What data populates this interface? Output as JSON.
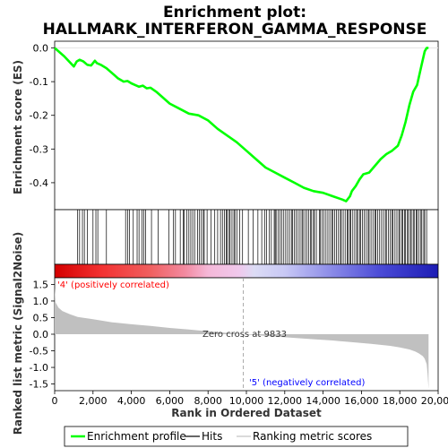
{
  "chart_data": {
    "type": "line",
    "title_line1": "Enrichment plot:",
    "title_line2": "HALLMARK_INTERFERON_GAMMA_RESPONSE",
    "ylabel_top": "Enrichment score (ES)",
    "ylabel_bottom": "Ranked list metric (Signal2Noise)",
    "xlabel": "Rank in Ordered Dataset",
    "xlim": [
      0,
      20000
    ],
    "ylim_es": [
      -0.48,
      0.02
    ],
    "ylim_metric": [
      -1.7,
      1.7
    ],
    "x_ticks": [
      "0",
      "2,000",
      "4,000",
      "6,000",
      "8,000",
      "10,000",
      "12,000",
      "14,000",
      "16,000",
      "18,000",
      "20,000"
    ],
    "es_ticks": [
      "0.0",
      "-0.1",
      "-0.2",
      "-0.3",
      "-0.4"
    ],
    "metric_ticks": [
      "1.5",
      "1.0",
      "0.5",
      "0.0",
      "-0.5",
      "-1.0",
      "-1.5"
    ],
    "label_positive": "'4' (positively correlated)",
    "label_negative": "'5' (negatively correlated)",
    "zero_cross_label": "Zero cross at 9833",
    "zero_cross": 9833,
    "n_genes": 19500,
    "es_curve": {
      "x": [
        0,
        500,
        1000,
        1150,
        1300,
        1500,
        1700,
        1900,
        2100,
        2200,
        2400,
        2700,
        3000,
        3300,
        3600,
        3800,
        4000,
        4200,
        4400,
        4600,
        4800,
        5000,
        5300,
        5600,
        6000,
        6500,
        7000,
        7500,
        8000,
        8500,
        9000,
        9500,
        10000,
        10500,
        11000,
        11500,
        12000,
        12500,
        13000,
        13500,
        14000,
        14500,
        15000,
        15200,
        15400,
        15500,
        15700,
        15900,
        16100,
        16400,
        16700,
        17000,
        17300,
        17600,
        17900,
        18100,
        18300,
        18500,
        18700,
        18900,
        19100,
        19300,
        19400,
        19500
      ],
      "y": [
        0.0,
        -0.025,
        -0.055,
        -0.04,
        -0.035,
        -0.04,
        -0.05,
        -0.052,
        -0.038,
        -0.045,
        -0.05,
        -0.06,
        -0.075,
        -0.09,
        -0.1,
        -0.098,
        -0.105,
        -0.11,
        -0.115,
        -0.112,
        -0.12,
        -0.118,
        -0.13,
        -0.145,
        -0.165,
        -0.18,
        -0.195,
        -0.2,
        -0.215,
        -0.24,
        -0.26,
        -0.28,
        -0.305,
        -0.33,
        -0.355,
        -0.37,
        -0.385,
        -0.4,
        -0.415,
        -0.425,
        -0.43,
        -0.44,
        -0.45,
        -0.455,
        -0.44,
        -0.425,
        -0.41,
        -0.39,
        -0.375,
        -0.37,
        -0.35,
        -0.33,
        -0.315,
        -0.305,
        -0.29,
        -0.26,
        -0.22,
        -0.17,
        -0.13,
        -0.11,
        -0.06,
        -0.01,
        0.0,
        0.0
      ]
    },
    "metric_curve": {
      "x": [
        0,
        50,
        200,
        400,
        800,
        1200,
        2000,
        3000,
        4000,
        5000,
        6000,
        7000,
        8000,
        9000,
        9833,
        10500,
        11500,
        12500,
        13500,
        14500,
        15500,
        16500,
        17500,
        18000,
        18500,
        18800,
        19000,
        19200,
        19300,
        19400,
        19450,
        19500
      ],
      "y": [
        1.4,
        0.95,
        0.8,
        0.7,
        0.6,
        0.52,
        0.45,
        0.36,
        0.3,
        0.25,
        0.19,
        0.14,
        0.09,
        0.04,
        0.0,
        -0.03,
        -0.07,
        -0.11,
        -0.15,
        -0.19,
        -0.24,
        -0.29,
        -0.35,
        -0.4,
        -0.46,
        -0.52,
        -0.58,
        -0.66,
        -0.74,
        -0.9,
        -1.2,
        -1.65
      ]
    },
    "hits": [
      1200,
      1300,
      1450,
      1550,
      1700,
      2000,
      2150,
      2250,
      2700,
      3700,
      3800,
      3900,
      4100,
      4300,
      4400,
      4550,
      4650,
      4750,
      5050,
      5400,
      5950,
      6200,
      6300,
      6550,
      6700,
      6750,
      6900,
      7000,
      7100,
      7200,
      7300,
      7450,
      7550,
      7650,
      7750,
      7800,
      7950,
      8150,
      8350,
      8500,
      8650,
      8750,
      8850,
      8950,
      9000,
      9100,
      9150,
      9250,
      9350,
      9400,
      9500,
      9650,
      9800,
      10100,
      10350,
      10600,
      10800,
      10950,
      11050,
      11200,
      11300,
      11450,
      11500,
      11550,
      11650,
      11750,
      11850,
      11950,
      12050,
      12150,
      12250,
      12350,
      12400,
      12500,
      12600,
      12700,
      12800,
      12900,
      12950,
      13050,
      13150,
      13250,
      13350,
      13400,
      13500,
      13550,
      13650,
      13800,
      13850,
      13950,
      14050,
      14150,
      14250,
      14350,
      14450,
      14500,
      14600,
      14700,
      14800,
      14900,
      14950,
      15050,
      15150,
      15250,
      15300,
      15400,
      15450,
      15550,
      15650,
      15750,
      15800,
      15900,
      15950,
      16050,
      16150,
      16250,
      16350,
      16400,
      16500,
      16600,
      16700,
      16750,
      16850,
      16950,
      17050,
      17150,
      17250,
      17300,
      17400,
      17500,
      17600,
      17650,
      17750,
      17850,
      17950,
      18000,
      18100,
      18150,
      18250,
      18300,
      18400,
      18450,
      18550,
      18600,
      18700,
      18750,
      18850,
      18900,
      19000,
      19100,
      19150,
      19250,
      19300,
      19400
    ],
    "legend": [
      {
        "label": "Enrichment profile",
        "color": "#00ff00"
      },
      {
        "label": "Hits",
        "color": "#000000"
      },
      {
        "label": "Ranking metric scores",
        "color": "#c0c0c0"
      }
    ],
    "colors": {
      "es_line": "#00ff00",
      "positive_label": "#ff0000",
      "negative_label": "#0000ff",
      "metric_fill": "#c0c0c0"
    }
  }
}
